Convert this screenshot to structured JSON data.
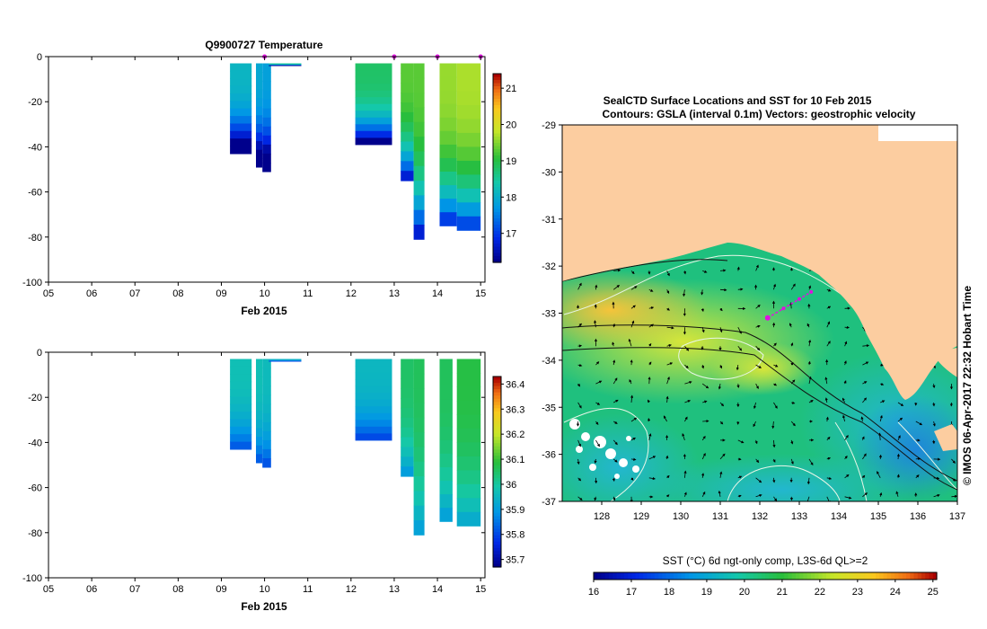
{
  "chart_data": [
    {
      "type": "heatmap",
      "title": "Q9900727  Temperature",
      "xlabel": "Feb 2015",
      "ylabel": "",
      "x_range_days": [
        5,
        15.1
      ],
      "ylim": [
        -100,
        0
      ],
      "x_ticks": [
        "05",
        "06",
        "07",
        "08",
        "09",
        "10",
        "11",
        "12",
        "13",
        "14",
        "15"
      ],
      "y_ticks": [
        "0",
        "-20",
        "-40",
        "-60",
        "-80",
        "-100"
      ],
      "colorbar_ticks": [
        "21",
        "20",
        "19",
        "18",
        "17"
      ],
      "colorbar_range": [
        16.2,
        21.4
      ],
      "surface_markers_day": [
        10,
        13,
        14,
        15
      ],
      "profiles": [
        {
          "day": 9.2,
          "width": 0.5,
          "depth": 43,
          "value": 18.1
        },
        {
          "day": 9.8,
          "width": 0.15,
          "depth": 49,
          "value": 17.9
        },
        {
          "day": 9.95,
          "width": 0.2,
          "depth": 51,
          "value": 17.8
        },
        {
          "day": 10.1,
          "width": 0.75,
          "depth": 4,
          "value": 18.5
        },
        {
          "day": 12.1,
          "width": 0.85,
          "depth": 39,
          "value": 18.8
        },
        {
          "day": 13.15,
          "width": 0.3,
          "depth": 55,
          "value": 19.3
        },
        {
          "day": 13.45,
          "width": 0.25,
          "depth": 81,
          "value": 19.3
        },
        {
          "day": 14.05,
          "width": 0.4,
          "depth": 75,
          "value": 19.6
        },
        {
          "day": 14.45,
          "width": 0.55,
          "depth": 77,
          "value": 19.7
        }
      ]
    },
    {
      "type": "heatmap",
      "title": "",
      "xlabel": "Feb 2015",
      "ylabel": "",
      "x_range_days": [
        5,
        15.1
      ],
      "ylim": [
        -100,
        0
      ],
      "x_ticks": [
        "05",
        "06",
        "07",
        "08",
        "09",
        "10",
        "11",
        "12",
        "13",
        "14",
        "15"
      ],
      "y_ticks": [
        "0",
        "-20",
        "-40",
        "-60",
        "-80",
        "-100"
      ],
      "colorbar_ticks": [
        "36.4",
        "36.3",
        "36.2",
        "36.1",
        "36",
        "35.9",
        "35.8",
        "35.7"
      ],
      "colorbar_range": [
        35.67,
        36.43
      ],
      "profiles": [
        {
          "day": 9.2,
          "width": 0.5,
          "depth": 43,
          "value": 35.97
        },
        {
          "day": 9.8,
          "width": 0.15,
          "depth": 49,
          "value": 35.97
        },
        {
          "day": 9.95,
          "width": 0.2,
          "depth": 51,
          "value": 35.96
        },
        {
          "day": 10.1,
          "width": 0.75,
          "depth": 4,
          "value": 35.94
        },
        {
          "day": 12.1,
          "width": 0.85,
          "depth": 39,
          "value": 35.95
        },
        {
          "day": 13.15,
          "width": 0.3,
          "depth": 55,
          "value": 36.05
        },
        {
          "day": 13.45,
          "width": 0.25,
          "depth": 81,
          "value": 36.06
        },
        {
          "day": 14.05,
          "width": 0.3,
          "depth": 75,
          "value": 36.06
        },
        {
          "day": 14.45,
          "width": 0.55,
          "depth": 77,
          "value": 36.08
        }
      ]
    },
    {
      "type": "heatmap",
      "title": "SealCTD Surface Locations and SST for 10 Feb 2015",
      "subtitle": "Contours: GSLA (interval 0.1m) Vectors: geostrophic velocity",
      "xlabel": "",
      "ylabel": "",
      "x_ticks": [
        "128",
        "129",
        "130",
        "131",
        "132",
        "133",
        "134",
        "135",
        "136",
        "137"
      ],
      "y_ticks": [
        "-29",
        "-30",
        "-31",
        "-32",
        "-33",
        "-34",
        "-35",
        "-36",
        "-37"
      ],
      "xlim": [
        127,
        137
      ],
      "ylim": [
        -37,
        -29
      ],
      "colorbar_label": "SST (°C) 6d ngt-only comp, L3S-6d QL>=2",
      "colorbar_ticks": [
        "16",
        "17",
        "18",
        "19",
        "20",
        "21",
        "22",
        "23",
        "24",
        "25"
      ],
      "colorbar_range": [
        16,
        25.1
      ],
      "seal_track": [
        [
          132.2,
          -33.1
        ],
        [
          132.6,
          -32.9
        ],
        [
          133.0,
          -32.7
        ],
        [
          133.3,
          -32.55
        ]
      ],
      "credit": "© IMOS 06-Apr-2017 22:32 Hobart Time"
    }
  ]
}
